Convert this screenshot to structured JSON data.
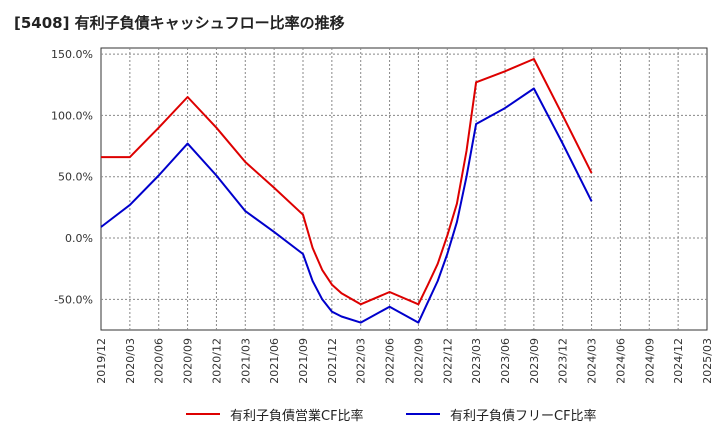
{
  "chart_data": {
    "type": "line",
    "title": "[5408]  有利子負債キャッシュフロー比率の推移",
    "xlabel": "",
    "ylabel": "",
    "categories": [
      "2019/12",
      "2020/03",
      "2020/06",
      "2020/09",
      "2020/12",
      "2021/03",
      "2021/06",
      "2021/09",
      "2021/12",
      "2022/03",
      "2022/06",
      "2022/09",
      "2022/12",
      "2023/03",
      "2023/06",
      "2023/09",
      "2023/12",
      "2024/03",
      "2024/06",
      "2024/09",
      "2024/12",
      "2025/03"
    ],
    "y_ticks": [
      "150.0%",
      "100.0%",
      "50.0%",
      "0.0%",
      "-50.0%"
    ],
    "ylim": [
      -75,
      155
    ],
    "grid": true,
    "legend_position": "bottom",
    "series": [
      {
        "name": "有利子負債営業CF比率",
        "color": "#dd0000",
        "x": [
          "2019/12",
          "2020/03",
          "2020/06",
          "2020/09",
          "2020/12",
          "2021/03",
          "2021/06",
          "2021/09",
          "2021/10",
          "2021/11",
          "2021/12",
          "2022/01",
          "2022/03",
          "2022/06",
          "2022/09",
          "2022/10",
          "2022/11",
          "2022/12",
          "2023/01",
          "2023/02",
          "2023/03",
          "2023/06",
          "2023/09",
          "2023/12",
          "2024/03"
        ],
        "values": [
          66,
          66,
          90,
          115,
          90,
          62,
          41,
          19,
          -8,
          -26,
          -38,
          -45,
          -54,
          -44,
          -54,
          -38,
          -21,
          2,
          28,
          71,
          127,
          136,
          146,
          100,
          53
        ]
      },
      {
        "name": "有利子負債フリーCF比率",
        "color": "#0000cc",
        "x": [
          "2019/12",
          "2020/03",
          "2020/06",
          "2020/09",
          "2020/12",
          "2021/03",
          "2021/06",
          "2021/09",
          "2021/10",
          "2021/11",
          "2021/12",
          "2022/01",
          "2022/03",
          "2022/06",
          "2022/09",
          "2022/10",
          "2022/11",
          "2022/12",
          "2023/01",
          "2023/02",
          "2023/03",
          "2023/06",
          "2023/09",
          "2023/12",
          "2024/03"
        ],
        "values": [
          9,
          27,
          51,
          77,
          51,
          22,
          5,
          -13,
          -35,
          -50,
          -60,
          -64,
          -69,
          -56,
          -69,
          -52,
          -35,
          -13,
          13,
          50,
          93,
          106,
          122,
          77,
          30
        ]
      }
    ]
  }
}
